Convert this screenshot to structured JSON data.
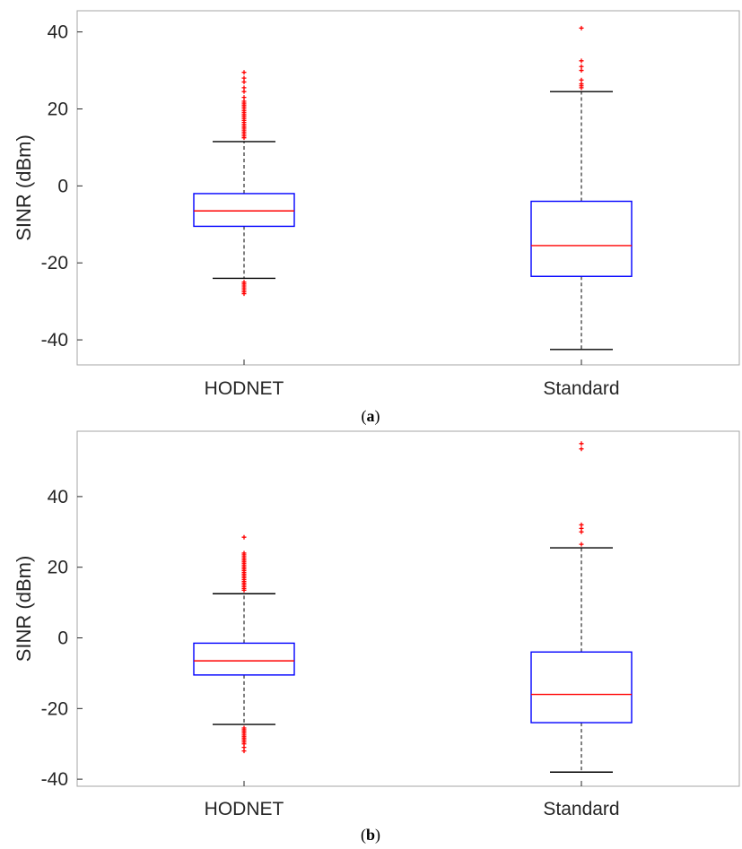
{
  "chart_data": [
    {
      "type": "box",
      "caption_open": "(",
      "caption_letter": "a",
      "caption_close": ")",
      "ylabel": "SINR (dBm)",
      "categories": [
        "HODNET",
        "Standard"
      ],
      "ylim": [
        -46.5,
        45.5
      ],
      "yticks": [
        -40,
        -20,
        0,
        20,
        40
      ],
      "ytick_labels": [
        "-40",
        "-20",
        "0",
        "20",
        "40"
      ],
      "boxes": [
        {
          "category": "HODNET",
          "whisker_low": -24,
          "q1": -10.5,
          "median": -6.5,
          "q3": -2,
          "whisker_high": 11.5,
          "outliers": [
            29.5,
            28,
            27,
            25.5,
            24.5,
            23,
            22,
            21.5,
            21,
            20.5,
            20,
            19.5,
            19,
            18.5,
            18,
            17.5,
            17,
            16.5,
            16,
            15.5,
            15,
            14.5,
            14,
            13.5,
            13,
            12.5,
            -25,
            -25.5,
            -26,
            -26.5,
            -27,
            -27.5,
            -28
          ]
        },
        {
          "category": "Standard",
          "whisker_low": -42.5,
          "q1": -23.5,
          "median": -15.5,
          "q3": -4,
          "whisker_high": 24.5,
          "outliers": [
            41,
            32.5,
            31,
            30,
            27.5,
            26.5,
            26,
            25.5
          ]
        }
      ],
      "colors": {
        "box": "#0000ff",
        "median": "#ff0000",
        "outlier": "#ff0000",
        "whisker": "#000000"
      }
    },
    {
      "type": "box",
      "caption_open": "(",
      "caption_letter": "b",
      "caption_close": ")",
      "ylabel": "SINR (dBm)",
      "categories": [
        "HODNET",
        "Standard"
      ],
      "ylim": [
        -42,
        58.5
      ],
      "yticks": [
        -40,
        -20,
        0,
        20,
        40
      ],
      "ytick_labels": [
        "-40",
        "-20",
        "0",
        "20",
        "40"
      ],
      "boxes": [
        {
          "category": "HODNET",
          "whisker_low": -24.5,
          "q1": -10.5,
          "median": -6.5,
          "q3": -1.5,
          "whisker_high": 12.5,
          "outliers": [
            28.5,
            24,
            23.5,
            23,
            22.5,
            22,
            21.5,
            21,
            20.5,
            20,
            19.5,
            19,
            18.5,
            18,
            17.5,
            17,
            16.5,
            16,
            15.5,
            15,
            14.5,
            14,
            13.5,
            -25.5,
            -26,
            -26.5,
            -27,
            -27.5,
            -28,
            -28.5,
            -29,
            -29.5,
            -30,
            -31,
            -32
          ]
        },
        {
          "category": "Standard",
          "whisker_low": -38,
          "q1": -24,
          "median": -16,
          "q3": -4,
          "whisker_high": 25.5,
          "outliers": [
            55,
            53.5,
            32,
            31,
            30,
            26.5
          ]
        }
      ],
      "colors": {
        "box": "#0000ff",
        "median": "#ff0000",
        "outlier": "#ff0000",
        "whisker": "#000000"
      }
    }
  ]
}
